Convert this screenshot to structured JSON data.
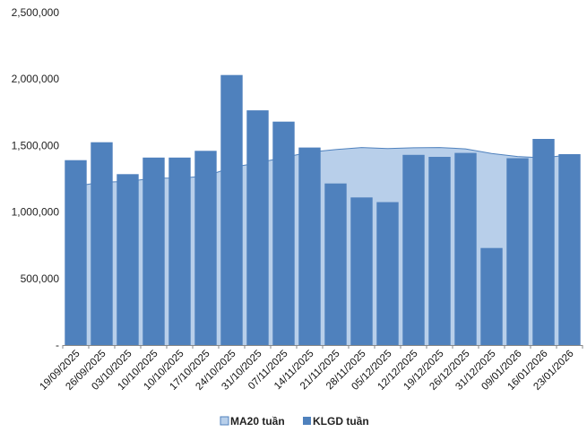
{
  "chart_data": {
    "type": "bar",
    "categories": [
      "19/09/2025",
      "26/09/2025",
      "03/10/2025",
      "10/10/2025",
      "10/10/2025",
      "17/10/2025",
      "24/10/2025",
      "31/10/2025",
      "07/11/2025",
      "14/11/2025",
      "21/11/2025",
      "28/11/2025",
      "05/12/2025",
      "12/12/2025",
      "19/12/2025",
      "26/12/2025",
      "31/12/2025",
      "09/01/2026",
      "16/01/2026",
      "23/01/2026"
    ],
    "series": [
      {
        "name": "MA20 tuần",
        "kind": "area",
        "color": "#b8cfea",
        "line_color": "#4f81bd",
        "values": [
          1195000,
          1225000,
          1230000,
          1255000,
          1255000,
          1270000,
          1335000,
          1370000,
          1410000,
          1450000,
          1470000,
          1485000,
          1478000,
          1483000,
          1485000,
          1475000,
          1440000,
          1418000,
          1408000,
          1430000
        ]
      },
      {
        "name": "KLGD tuần",
        "kind": "bar",
        "color": "#4f81bd",
        "values": [
          1390000,
          1525000,
          1285000,
          1410000,
          1410000,
          1460000,
          2030000,
          1765000,
          1680000,
          1485000,
          1215000,
          1110000,
          1075000,
          1430000,
          1415000,
          1445000,
          730000,
          1405000,
          1550000,
          1435000
        ]
      }
    ],
    "y_ticks": [
      "-",
      "500,000",
      "1,000,000",
      "1,500,000",
      "2,000,000",
      "2,500,000"
    ],
    "ylim": [
      0,
      2500000
    ],
    "grid": false,
    "legend_position": "bottom"
  }
}
